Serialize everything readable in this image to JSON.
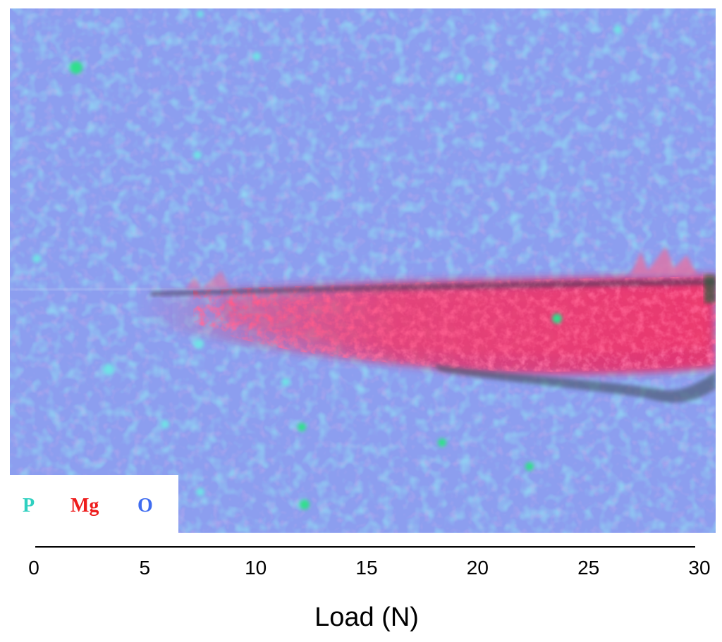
{
  "legend": {
    "items": [
      {
        "symbol": "P",
        "color": "#2fd0c0"
      },
      {
        "symbol": "Mg",
        "color": "#ee1c1c"
      },
      {
        "symbol": "O",
        "color": "#3f6cf0"
      }
    ]
  },
  "axis": {
    "title": "Load (N)",
    "ticks": [
      "0",
      "5",
      "10",
      "15",
      "20",
      "25",
      "30"
    ],
    "range": [
      0,
      30
    ]
  },
  "colors": {
    "background_map": "#8f9ff0",
    "p_phase": "#4fd6e6",
    "mg_scratch": "#f0245c",
    "spot_green": "#2ee08a"
  }
}
